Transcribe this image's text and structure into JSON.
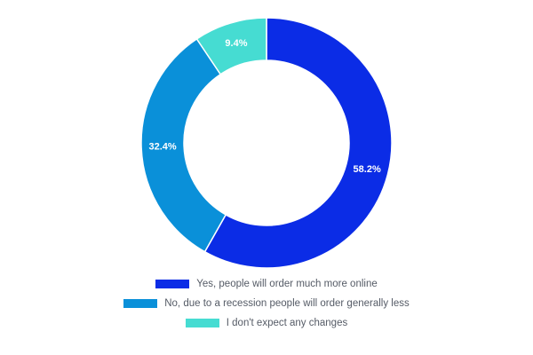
{
  "chart_data": {
    "type": "pie",
    "style": "donut",
    "categories": [
      "Yes, people will order much more online",
      "No, due to a recession people will order generally less",
      "I don't expect any changes"
    ],
    "values": [
      58.2,
      32.4,
      9.4
    ],
    "value_labels": [
      "58.2%",
      "32.4%",
      "9.4%"
    ],
    "colors": [
      "#0b2ce6",
      "#0a90d9",
      "#46dcd2"
    ],
    "legend_position": "bottom",
    "start_angle": "top, clockwise"
  }
}
